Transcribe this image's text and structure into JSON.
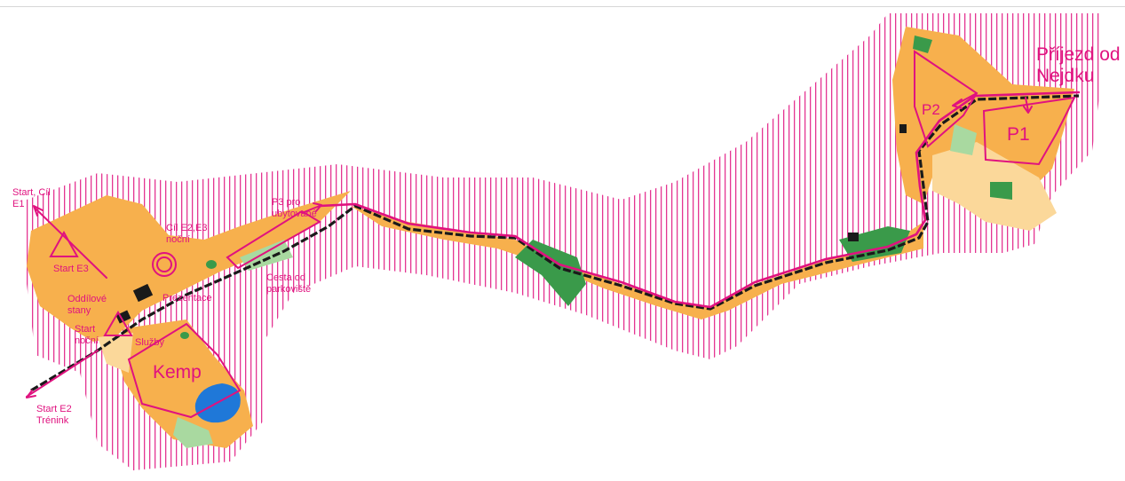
{
  "colors": {
    "terrain": "#f7b04d",
    "terrain_light": "#fbd89a",
    "forest_green": "#3a9a4a",
    "light_green": "#a9d9a0",
    "water": "#1f78d8",
    "course_magenta": "#e0127f",
    "road_black": "#1a1a1a"
  },
  "labels": {
    "prijezd_nejdku": "Příjezd od\nNejdku",
    "p1": "P1",
    "p2": "P2",
    "p3": "P3 pro\nubytované",
    "cesta": "Cesta od\nparkoviště",
    "start_cil_e1": "Start, Cíl\nE1",
    "cil_e2_e3": "Cíl E2,E3\nnoční",
    "start_e3": "Start E3",
    "oddilove_stany": "Oddílové\nstany",
    "prezentace": "Prezentace",
    "start_nocni": "Start\nnoční",
    "sluzby": "Služby",
    "kemp": "Kemp",
    "start_e2_trenink": "Start E2\nTrénink"
  },
  "symbols": [
    {
      "type": "start-triangle",
      "label": "Start E3"
    },
    {
      "type": "start-triangle",
      "label": "Start noční"
    },
    {
      "type": "finish-circle",
      "label": "Cíl E2,E3 noční"
    }
  ]
}
